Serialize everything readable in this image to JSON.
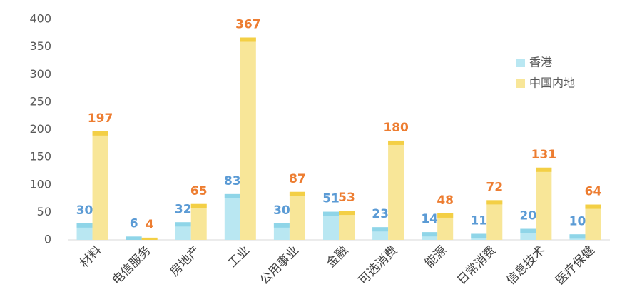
{
  "chart_data": {
    "type": "bar",
    "categories": [
      "材料",
      "电信服务",
      "房地产",
      "工业",
      "公用事业",
      "金融",
      "可选消费",
      "能源",
      "日常消费",
      "信息技术",
      "医疗保健"
    ],
    "series": [
      {
        "name": "香港",
        "color": "#b9e7f2",
        "values": [
          30,
          6,
          32,
          83,
          30,
          51,
          23,
          14,
          11,
          20,
          10
        ]
      },
      {
        "name": "中国内地",
        "color": "#f8e698",
        "values": [
          197,
          4,
          65,
          367,
          87,
          53,
          180,
          48,
          72,
          131,
          64
        ]
      }
    ],
    "ylim": [
      0,
      400
    ],
    "yticks": [
      0,
      50,
      100,
      150,
      200,
      250,
      300,
      350,
      400
    ],
    "grid": false,
    "legend": "top-right"
  }
}
